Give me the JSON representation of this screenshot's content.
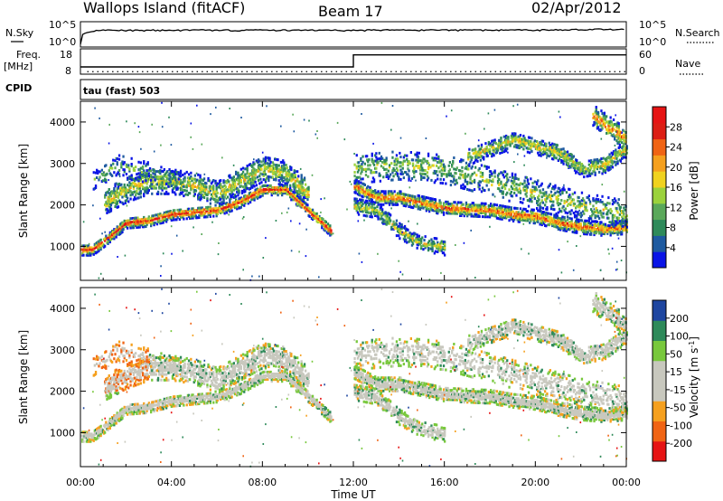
{
  "header": {
    "site": "Wallops Island (fitACF)",
    "beam": "Beam 17",
    "date": "02/Apr/2012"
  },
  "chart_data": [
    {
      "type": "line",
      "panel": "noise",
      "left_label": "N.Sky",
      "right_label": "N.Search",
      "left_ticks": [
        "10^5",
        "10^0"
      ],
      "right_ticks": [
        "10^5",
        "10^0"
      ],
      "x": [
        0,
        1,
        2,
        4,
        6,
        8,
        10,
        12,
        14,
        16,
        18,
        20,
        21,
        22,
        23,
        24
      ],
      "series": [
        {
          "values": [
            1,
            3000,
            2800,
            3200,
            3000,
            3100,
            2900,
            2800,
            3400,
            3000,
            3100,
            3300,
            3800,
            4500,
            5000,
            4200
          ]
        }
      ]
    },
    {
      "type": "line",
      "panel": "frequency",
      "left_label": "Freq.",
      "left_unit": "[MHz]",
      "right_label": "Nave",
      "left_ticks": [
        "18",
        "8"
      ],
      "right_ticks": [
        "60",
        "0"
      ],
      "left_ylim": [
        8,
        18
      ],
      "right_ylim": [
        0,
        60
      ],
      "x": [
        0,
        12,
        12,
        24
      ],
      "series": [
        {
          "values": [
            10.6,
            10.6,
            16.4,
            16.4
          ]
        }
      ],
      "nave_level": 2
    },
    {
      "type": "text",
      "panel": "cpid",
      "label": "CPID",
      "text": "tau (fast) 503"
    },
    {
      "type": "heatmap",
      "panel": "power",
      "ylabel": "Slant Range [km]",
      "ylim": [
        180,
        4500
      ],
      "yticks": [
        1000,
        2000,
        3000,
        4000
      ],
      "colorbar_label": "Power [dB]",
      "colorbar_ticks": [
        4,
        8,
        12,
        16,
        20,
        24,
        28
      ],
      "bands": [
        {
          "points": [
            [
              0,
              950
            ],
            [
              0.5,
              950
            ],
            [
              1,
              1150
            ],
            [
              2,
              1600
            ],
            [
              3,
              1650
            ],
            [
              4,
              1800
            ],
            [
              6,
              1900
            ],
            [
              7,
              2100
            ],
            [
              8,
              2400
            ],
            [
              9,
              2400
            ],
            [
              10,
              1900
            ],
            [
              11,
              1400
            ]
          ],
          "width": 130,
          "density": 0.85,
          "intensity": 0.9
        },
        {
          "points": [
            [
              1,
              2100
            ],
            [
              2,
              2400
            ],
            [
              3,
              2600
            ],
            [
              4,
              2600
            ],
            [
              5,
              2500
            ],
            [
              6,
              2300
            ],
            [
              7,
              2600
            ],
            [
              8,
              2900
            ],
            [
              9,
              2800
            ],
            [
              10,
              2300
            ]
          ],
          "width": 300,
          "density": 0.55,
          "intensity": 0.55
        },
        {
          "points": [
            [
              0.5,
              2600
            ],
            [
              1.5,
              3000
            ],
            [
              3,
              2800
            ],
            [
              4.5,
              2500
            ]
          ],
          "width": 250,
          "density": 0.25,
          "intensity": 0.35
        },
        {
          "points": [
            [
              12,
              2500
            ],
            [
              13,
              2200
            ],
            [
              14,
              2200
            ],
            [
              16,
              1950
            ],
            [
              18,
              1900
            ],
            [
              19,
              1800
            ],
            [
              20,
              1750
            ],
            [
              21,
              1600
            ],
            [
              22,
              1500
            ],
            [
              23,
              1450
            ],
            [
              24,
              1500
            ]
          ],
          "width": 160,
          "density": 0.85,
          "intensity": 0.8
        },
        {
          "points": [
            [
              12,
              2000
            ],
            [
              13,
              1900
            ],
            [
              14,
              1400
            ],
            [
              15,
              1100
            ],
            [
              16,
              1000
            ]
          ],
          "width": 180,
          "density": 0.6,
          "intensity": 0.5
        },
        {
          "points": [
            [
              17,
              3200
            ],
            [
              19,
              3600
            ],
            [
              21,
              3300
            ],
            [
              22,
              2900
            ],
            [
              23,
              3000
            ],
            [
              24,
              3400
            ]
          ],
          "width": 200,
          "density": 0.55,
          "intensity": 0.55
        },
        {
          "points": [
            [
              12,
              2900
            ],
            [
              14,
              3000
            ],
            [
              16,
              2900
            ],
            [
              18,
              2600
            ],
            [
              20,
              2300
            ],
            [
              22,
              2000
            ],
            [
              24,
              1800
            ]
          ],
          "width": 350,
          "density": 0.3,
          "intensity": 0.45
        },
        {
          "points": [
            [
              22.5,
              4200
            ],
            [
              23.5,
              3800
            ],
            [
              24,
              3600
            ]
          ],
          "width": 250,
          "density": 0.5,
          "intensity": 0.75
        }
      ]
    },
    {
      "type": "heatmap",
      "panel": "velocity",
      "ylabel": "Slant Range [km]",
      "xlabel": "Time UT",
      "ylim": [
        180,
        4500
      ],
      "yticks": [
        1000,
        2000,
        3000,
        4000
      ],
      "xlim": [
        0,
        24
      ],
      "xticks": [
        "00:00",
        "04:00",
        "08:00",
        "12:00",
        "16:00",
        "20:00",
        "00:00"
      ],
      "colorbar_label": "Velocity [m s^-1]",
      "colorbar_ticks": [
        200,
        100,
        50,
        15,
        -15,
        -50,
        -100,
        -200
      ]
    }
  ],
  "colors": {
    "power_scale": [
      "#0a14e6",
      "#1e5aa0",
      "#2e8a5a",
      "#5aa85a",
      "#9bd23c",
      "#f0d21e",
      "#f5a01e",
      "#f06414",
      "#dc1e14",
      "#e61414"
    ],
    "velocity_scale": [
      "#e61414",
      "#f06414",
      "#f5a01e",
      "#c8c8be",
      "#c8c8be",
      "#78c83c",
      "#2e8a5a",
      "#1e46a0"
    ],
    "ground_grey": "#c8c8be"
  }
}
